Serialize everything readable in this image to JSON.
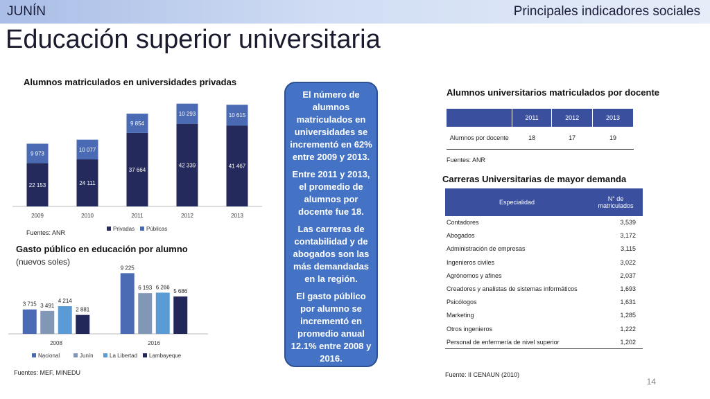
{
  "header": {
    "region": "JUNÍN",
    "section": "Principales indicadores sociales"
  },
  "page_title": "Educación superior universitaria",
  "page_number": "14",
  "chart1": {
    "title": "Alumnos matriculados en universidades privadas",
    "source": "Fuentes: ANR"
  },
  "chart2": {
    "title": "Gasto público en educación por alumno",
    "subtitle": "(nuevos soles)",
    "source": "Fuentes: MEF, MINEDU"
  },
  "callout": {
    "p1": "El número de alumnos matriculados en universidades se incrementó en 62% entre 2009 y 2013.",
    "p2": "Entre 2011 y 2013, el promedio de alumnos por docente fue 18.",
    "p3": "Las carreras de contabilidad y de abogados son las más demandadas en la región.",
    "p4": "El gasto público por alumno se incrementó en promedio anual 12.1% entre 2008 y 2016."
  },
  "table1": {
    "title": "Alumnos universitarios matriculados por docente",
    "headers": [
      "",
      "2011",
      "2012",
      "2013"
    ],
    "row_label": "Alumnos por docente",
    "values": [
      "18",
      "17",
      "19"
    ],
    "source": "Fuentes: ANR"
  },
  "table2": {
    "title": "Carreras Universitarias de mayor demanda",
    "headers": [
      "Especialidad",
      "N° de matriculados"
    ],
    "rows": [
      [
        "Contadores",
        "3,539"
      ],
      [
        "Abogados",
        "3,172"
      ],
      [
        "Administración de empresas",
        "3,115"
      ],
      [
        "Ingenieros civiles",
        "3,022"
      ],
      [
        "Agrónomos y afines",
        "2,037"
      ],
      [
        "Creadores y analistas de sistemas informáticos",
        "1,693"
      ],
      [
        "Psicólogos",
        "1,631"
      ],
      [
        "Marketing",
        "1,285"
      ],
      [
        "Otros ingenieros",
        "1,222"
      ],
      [
        "Personal de enfermería de nivel superior",
        "1,202"
      ]
    ],
    "source": "Fuente: II CENAUN (2010)"
  },
  "colors": {
    "dark_navy": "#252a5c",
    "steel_blue": "#4a6ab3",
    "gray_blue": "#8097b5",
    "light_blue": "#5b9bd5",
    "navy": "#23285a",
    "callout": "#4472c4"
  },
  "chart_data": [
    {
      "type": "bar",
      "stacked": true,
      "title": "Alumnos matriculados en universidades privadas",
      "categories": [
        "2009",
        "2010",
        "2011",
        "2012",
        "2013"
      ],
      "series": [
        {
          "name": "Privadas",
          "values": [
            22153,
            24111,
            37664,
            42339,
            41467
          ],
          "labels": [
            "22 153",
            "24 111",
            "37 664",
            "42 339",
            "41 467"
          ],
          "color": "#252a5c"
        },
        {
          "name": "Públicas",
          "values": [
            9973,
            10077,
            9854,
            10293,
            10615
          ],
          "labels": [
            "9 973",
            "10 077",
            "9 854",
            "10 293",
            "10 615"
          ],
          "color": "#4a6ab3"
        }
      ],
      "ylim": [
        0,
        55000
      ],
      "legend": "bottom"
    },
    {
      "type": "bar",
      "title": "Gasto público en educación por alumno",
      "categories": [
        "2008",
        "2016"
      ],
      "series": [
        {
          "name": "Nacional",
          "values": [
            3715,
            9225
          ],
          "labels": [
            "3 715",
            "9 225"
          ],
          "color": "#4a6ab3"
        },
        {
          "name": "Junín",
          "values": [
            3491,
            6193
          ],
          "labels": [
            "3 491",
            "6 193"
          ],
          "color": "#8097b5"
        },
        {
          "name": "La Libertad",
          "values": [
            4214,
            6266
          ],
          "labels": [
            "4 214",
            "6 266"
          ],
          "color": "#5b9bd5"
        },
        {
          "name": "Lambayeque",
          "values": [
            2881,
            5686
          ],
          "labels": [
            "2 881",
            "5 686"
          ],
          "color": "#23285a"
        }
      ],
      "ylim": [
        0,
        10000
      ],
      "legend": "bottom"
    }
  ]
}
